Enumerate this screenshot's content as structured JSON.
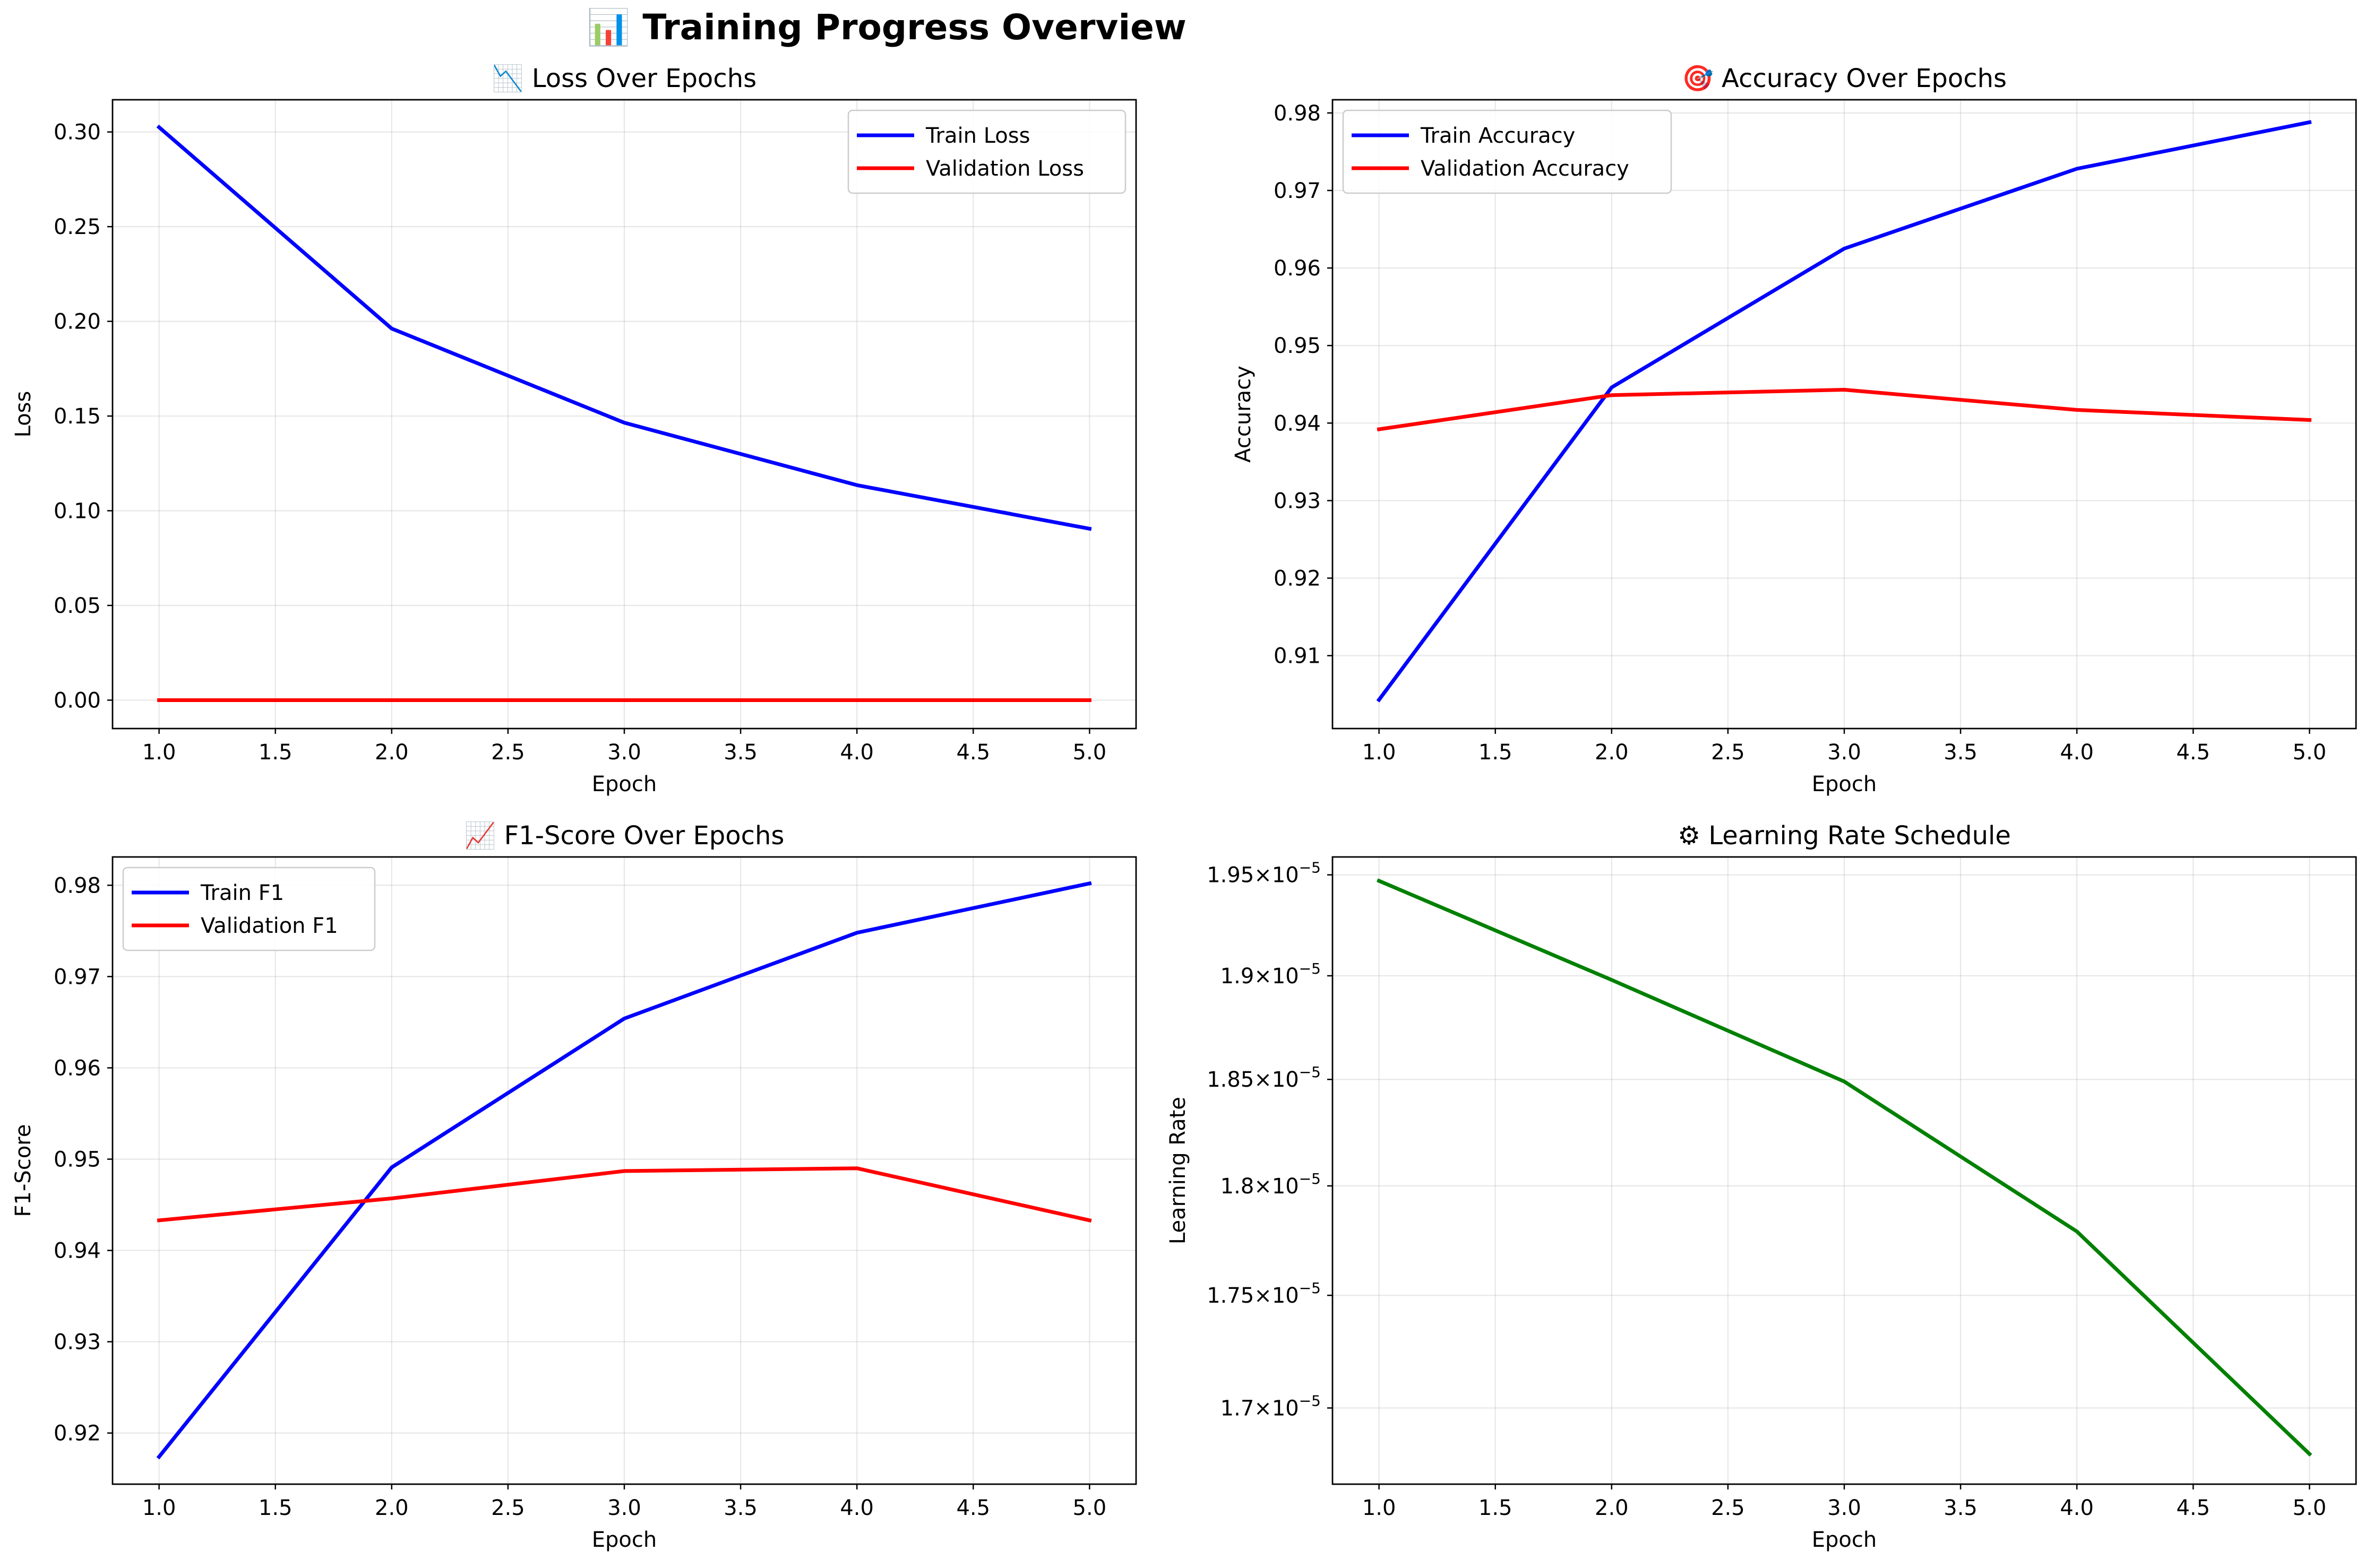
{
  "figure": {
    "title": "📊 Training Progress Overview"
  },
  "chart_data": [
    {
      "type": "line",
      "title": "📉 Loss Over Epochs",
      "xlabel": "Epoch",
      "ylabel": "Loss",
      "x": [
        1,
        2,
        3,
        4,
        5
      ],
      "xlim": [
        0.8,
        5.2
      ],
      "ylim": [
        -0.015,
        0.317
      ],
      "xticks": [
        1.0,
        1.5,
        2.0,
        2.5,
        3.0,
        3.5,
        4.0,
        4.5,
        5.0
      ],
      "yticks": [
        0.0,
        0.05,
        0.1,
        0.15,
        0.2,
        0.25,
        0.3
      ],
      "tick_decimals": [
        1,
        2
      ],
      "grid": true,
      "legend": "upper right",
      "series": [
        {
          "name": "Train Loss",
          "color": "#0000ff",
          "values": [
            0.3025,
            0.1962,
            0.1465,
            0.1135,
            0.0905
          ]
        },
        {
          "name": "Validation Loss",
          "color": "#ff0000",
          "values": [
            0.0,
            0.0,
            0.0,
            0.0,
            0.0
          ]
        }
      ]
    },
    {
      "type": "line",
      "title": "🎯 Accuracy Over Epochs",
      "xlabel": "Epoch",
      "ylabel": "Accuracy",
      "x": [
        1,
        2,
        3,
        4,
        5
      ],
      "xlim": [
        0.8,
        5.2
      ],
      "ylim": [
        0.9006,
        0.9817
      ],
      "xticks": [
        1.0,
        1.5,
        2.0,
        2.5,
        3.0,
        3.5,
        4.0,
        4.5,
        5.0
      ],
      "yticks": [
        0.91,
        0.92,
        0.93,
        0.94,
        0.95,
        0.96,
        0.97,
        0.98
      ],
      "tick_decimals": [
        1,
        2
      ],
      "grid": true,
      "legend": "upper left",
      "series": [
        {
          "name": "Train Accuracy",
          "color": "#0000ff",
          "values": [
            0.9043,
            0.9446,
            0.9625,
            0.9728,
            0.9788
          ]
        },
        {
          "name": "Validation Accuracy",
          "color": "#ff0000",
          "values": [
            0.9392,
            0.9436,
            0.9443,
            0.9417,
            0.9404
          ]
        }
      ]
    },
    {
      "type": "line",
      "title": "📈 F1-Score Over Epochs",
      "xlabel": "Epoch",
      "ylabel": "F1-Score",
      "x": [
        1,
        2,
        3,
        4,
        5
      ],
      "xlim": [
        0.8,
        5.2
      ],
      "ylim": [
        0.9144,
        0.9831
      ],
      "xticks": [
        1.0,
        1.5,
        2.0,
        2.5,
        3.0,
        3.5,
        4.0,
        4.5,
        5.0
      ],
      "yticks": [
        0.92,
        0.93,
        0.94,
        0.95,
        0.96,
        0.97,
        0.98
      ],
      "tick_decimals": [
        1,
        2
      ],
      "grid": true,
      "legend": "upper left",
      "series": [
        {
          "name": "Train F1",
          "color": "#0000ff",
          "values": [
            0.9174,
            0.9491,
            0.9654,
            0.9748,
            0.9802
          ]
        },
        {
          "name": "Validation F1",
          "color": "#ff0000",
          "values": [
            0.9433,
            0.9457,
            0.9487,
            0.949,
            0.9433
          ]
        }
      ]
    },
    {
      "type": "line",
      "title": "⚙ Learning Rate Schedule",
      "xlabel": "Epoch",
      "ylabel": "Learning Rate",
      "x": [
        1,
        2,
        3,
        4,
        5
      ],
      "xlim": [
        0.8,
        5.2
      ],
      "ylim": [
        1.667e-05,
        1.959e-05
      ],
      "yscale": "log",
      "xticks": [
        1.0,
        1.5,
        2.0,
        2.5,
        3.0,
        3.5,
        4.0,
        4.5,
        5.0
      ],
      "yticks": [
        1.7e-05,
        1.75e-05,
        1.8e-05,
        1.85e-05,
        1.9e-05,
        1.95e-05
      ],
      "ytick_labels": [
        {
          "mantissa": "1.7",
          "base": "10",
          "exponent": "−5"
        },
        {
          "mantissa": "1.75",
          "base": "10",
          "exponent": "−5"
        },
        {
          "mantissa": "1.8",
          "base": "10",
          "exponent": "−5"
        },
        {
          "mantissa": "1.85",
          "base": "10",
          "exponent": "−5"
        },
        {
          "mantissa": "1.9",
          "base": "10",
          "exponent": "−5"
        },
        {
          "mantissa": "1.95",
          "base": "10",
          "exponent": "−5"
        }
      ],
      "tick_decimals": [
        1,
        2
      ],
      "grid": true,
      "legend": "",
      "series": [
        {
          "color": "#008000",
          "values": [
            1.947e-05,
            1.898e-05,
            1.849e-05,
            1.779e-05,
            1.68e-05
          ]
        }
      ]
    }
  ]
}
